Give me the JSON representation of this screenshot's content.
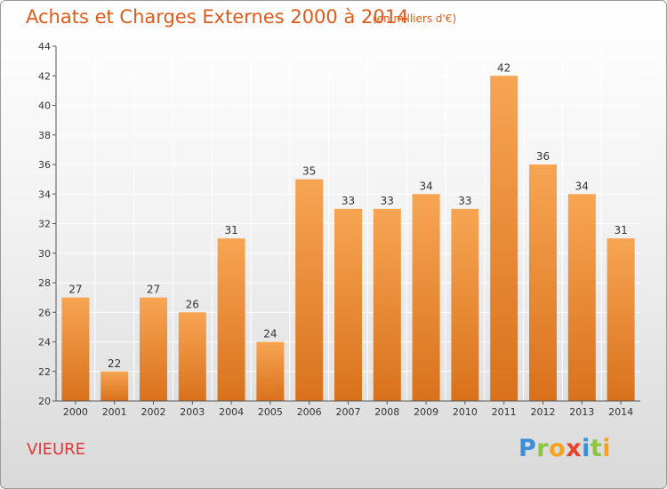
{
  "title": "Achats et Charges Externes 2000 à 2014",
  "subtitle": "(en milliers d'€)",
  "commune": "VIEURE",
  "logo": {
    "letters": [
      {
        "ch": "P",
        "color": "#3a8fd6"
      },
      {
        "ch": "r",
        "color": "#8cc63f"
      },
      {
        "ch": "o",
        "color": "#f7a21b"
      },
      {
        "ch": "x",
        "color": "#e8412c"
      },
      {
        "ch": "i",
        "color": "#3a8fd6"
      },
      {
        "ch": "t",
        "color": "#8cc63f"
      },
      {
        "ch": "i",
        "color": "#f7a21b"
      }
    ]
  },
  "colors": {
    "title": "#e05a1a",
    "bar_top": "#f7a553",
    "bar_bottom": "#d9711c",
    "grid": "#ffffff"
  },
  "chart_data": {
    "type": "bar",
    "categories": [
      "2000",
      "2001",
      "2002",
      "2003",
      "2004",
      "2005",
      "2006",
      "2007",
      "2008",
      "2009",
      "2010",
      "2011",
      "2012",
      "2013",
      "2014"
    ],
    "values": [
      27,
      22,
      27,
      26,
      31,
      24,
      35,
      33,
      33,
      34,
      33,
      42,
      36,
      34,
      31
    ],
    "title": "Achats et Charges Externes 2000 à 2014",
    "xlabel": "",
    "ylabel": "",
    "ylim": [
      20,
      44
    ],
    "yticks": [
      20,
      22,
      24,
      26,
      28,
      30,
      32,
      34,
      36,
      38,
      40,
      42,
      44
    ],
    "grid": true,
    "data_labels": true
  }
}
